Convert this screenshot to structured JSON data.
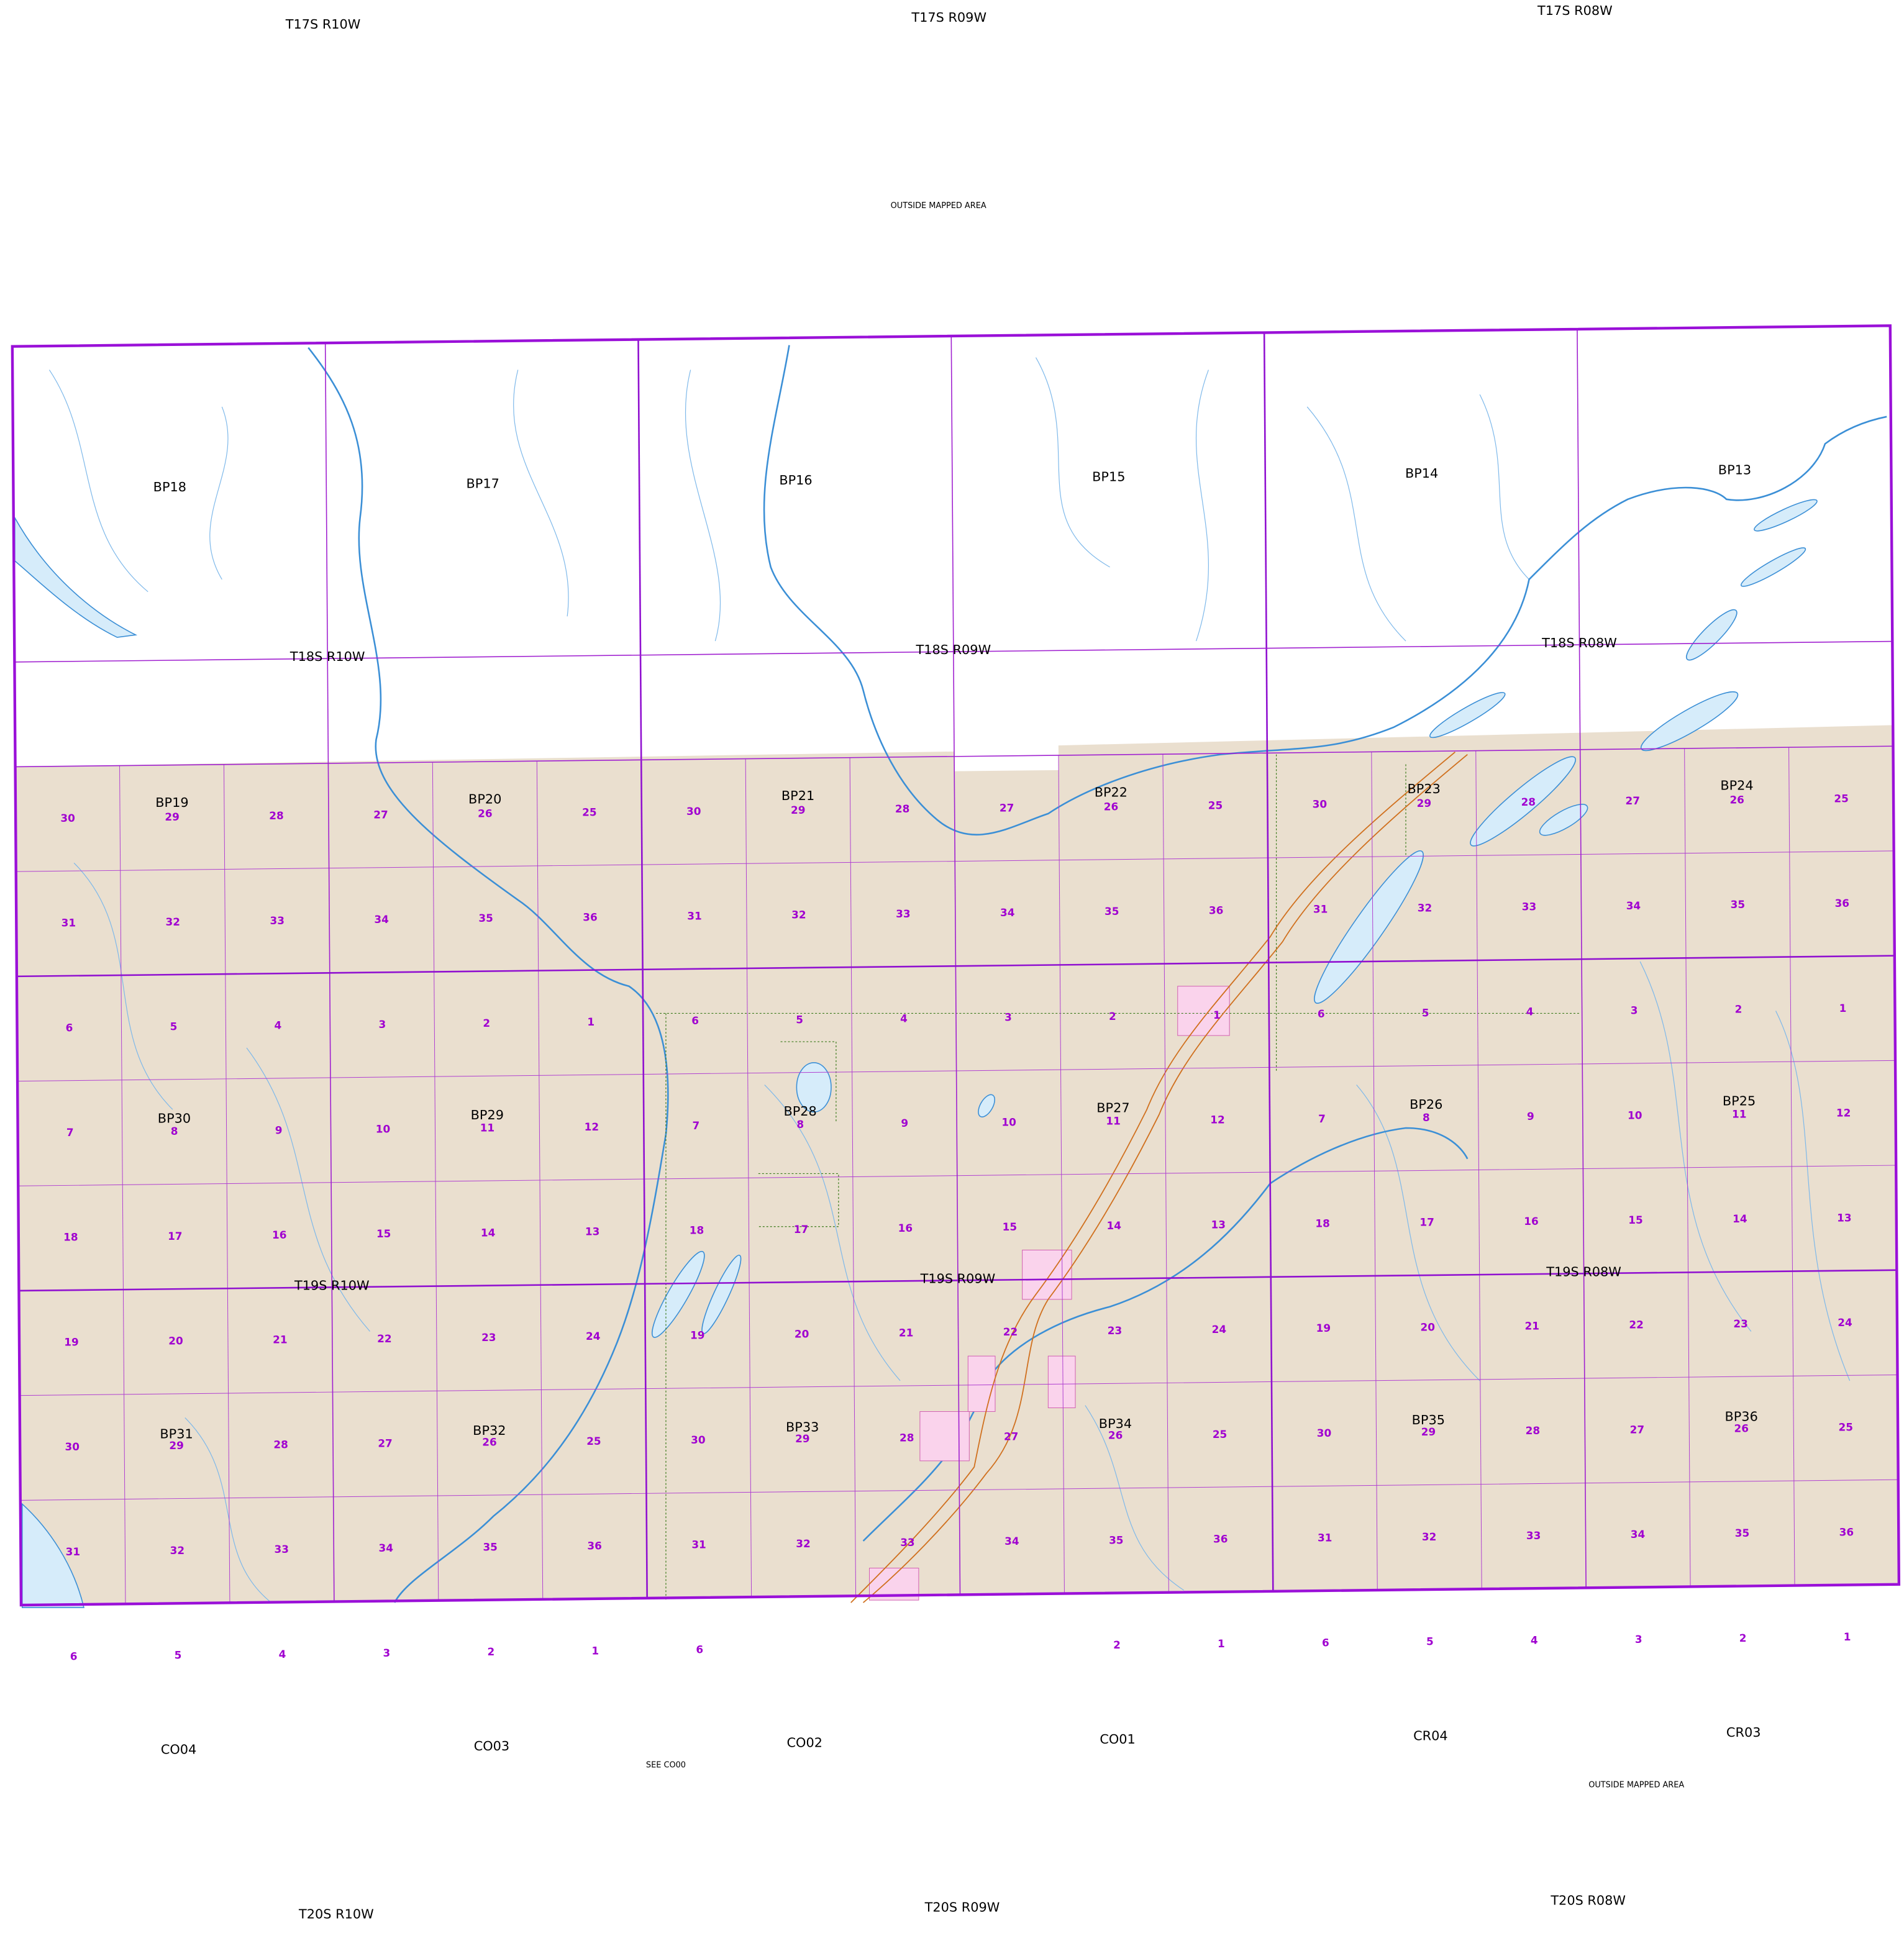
{
  "township_labels": [
    [
      "T17S R10W",
      "T17S R09W",
      "T17S R08W"
    ],
    [
      "T18S R10W",
      "T18S R09W",
      "T18S R08W"
    ],
    [
      "T19S R10W",
      "T19S R09W",
      "T19S R08W"
    ],
    [
      "T20S R10W",
      "T20S R09W",
      "T20S R08W"
    ]
  ],
  "sheets": [
    [
      "BP18",
      "BP17",
      "BP16",
      "BP15",
      "BP14",
      "BP13"
    ],
    [
      "BP19",
      "BP20",
      "BP21",
      "BP22",
      "BP23",
      "BP24"
    ],
    [
      "BP30",
      "BP29",
      "BP28",
      "BP27",
      "BP26",
      "BP25"
    ],
    [
      "BP31",
      "BP32",
      "BP33",
      "BP34",
      "BP35",
      "BP36"
    ],
    [
      "CO04",
      "CO03",
      "CO02",
      "CO01",
      "CR04",
      "CR03"
    ]
  ],
  "sections": [
    [
      30,
      29,
      28,
      27,
      26,
      25,
      30,
      29,
      28,
      27,
      26,
      25,
      30,
      29,
      28,
      27,
      26,
      25
    ],
    [
      31,
      32,
      33,
      34,
      35,
      36,
      31,
      32,
      33,
      34,
      35,
      36,
      31,
      32,
      33,
      34,
      35,
      36
    ],
    [
      6,
      5,
      4,
      3,
      2,
      1,
      6,
      5,
      4,
      3,
      2,
      1,
      6,
      5,
      4,
      3,
      2,
      1
    ],
    [
      7,
      8,
      9,
      10,
      11,
      12,
      7,
      8,
      9,
      10,
      11,
      12,
      7,
      8,
      9,
      10,
      11,
      12
    ],
    [
      18,
      17,
      16,
      15,
      14,
      13,
      18,
      17,
      16,
      15,
      14,
      13,
      18,
      17,
      16,
      15,
      14,
      13
    ],
    [
      19,
      20,
      21,
      22,
      23,
      24,
      19,
      20,
      21,
      22,
      23,
      24,
      19,
      20,
      21,
      22,
      23,
      24
    ],
    [
      30,
      29,
      28,
      27,
      26,
      25,
      30,
      29,
      28,
      27,
      26,
      25,
      30,
      29,
      28,
      27,
      26,
      25
    ],
    [
      31,
      32,
      33,
      34,
      35,
      36,
      31,
      32,
      33,
      34,
      35,
      36,
      31,
      32,
      33,
      34,
      35,
      36
    ],
    [
      6,
      5,
      4,
      3,
      2,
      1,
      6,
      null,
      null,
      null,
      2,
      1,
      6,
      5,
      4,
      3,
      2,
      1
    ]
  ],
  "notes": {
    "outside_top": "OUTSIDE MAPPED AREA",
    "see": "SEE CO00",
    "outside_bottom": "OUTSIDE MAPPED AREA"
  }
}
